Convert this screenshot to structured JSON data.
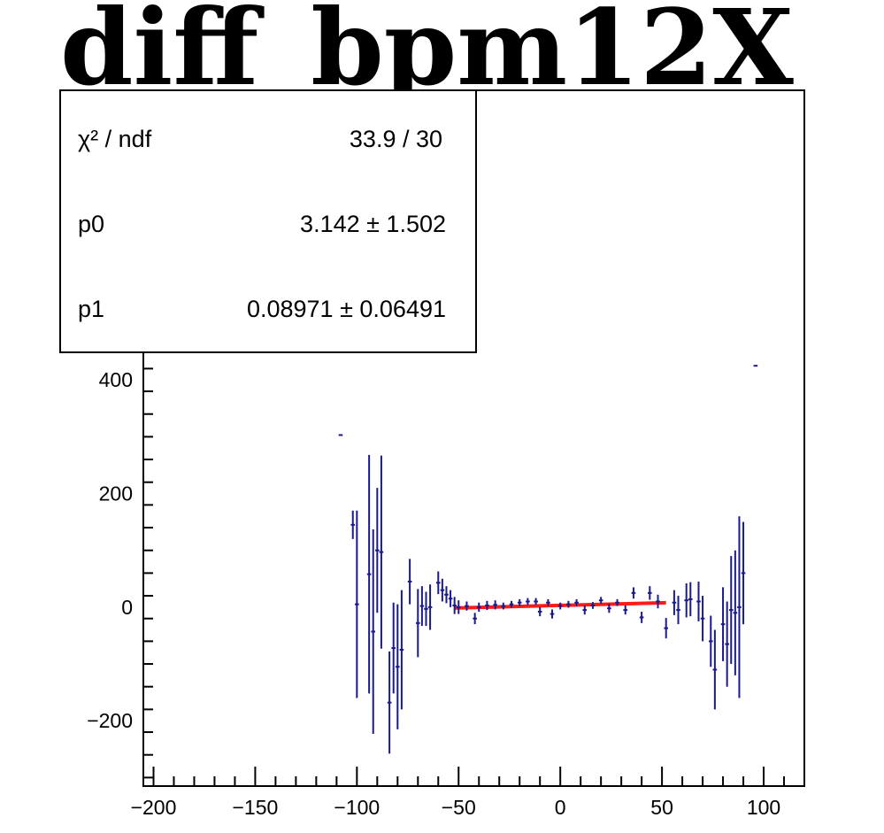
{
  "chart_data": {
    "type": "scatter",
    "title": "diff_bpm12X",
    "xlabel": "",
    "ylabel": "",
    "xlim": [
      -205,
      120
    ],
    "ylim": [
      -315,
      910
    ],
    "x_ticks": [
      {
        "value": -200,
        "label": "−200"
      },
      {
        "value": -150,
        "label": "−150"
      },
      {
        "value": -100,
        "label": "−100"
      },
      {
        "value": -50,
        "label": "−50"
      },
      {
        "value": 0,
        "label": "0"
      },
      {
        "value": 50,
        "label": "50"
      },
      {
        "value": 100,
        "label": "100"
      }
    ],
    "y_ticks": [
      {
        "value": -200,
        "label": "−200"
      },
      {
        "value": 0,
        "label": "0"
      },
      {
        "value": 200,
        "label": "200"
      },
      {
        "value": 400,
        "label": "400"
      }
    ],
    "grid": false,
    "marker_color": "#1a1a8c",
    "fit_color": "#ff1a1a",
    "series": [
      {
        "points": [
          {
            "x": -108,
            "y": 303,
            "ey": 0
          },
          {
            "x": -102,
            "y": 145,
            "ey": 25
          },
          {
            "x": -100,
            "y": 5,
            "ey": 165
          },
          {
            "x": -94,
            "y": 58,
            "ey": 210
          },
          {
            "x": -92,
            "y": -43,
            "ey": 180
          },
          {
            "x": -90,
            "y": 100,
            "ey": 110
          },
          {
            "x": -88,
            "y": 97,
            "ey": 170
          },
          {
            "x": -84,
            "y": -168,
            "ey": 90
          },
          {
            "x": -82,
            "y": -72,
            "ey": 80
          },
          {
            "x": -80,
            "y": -105,
            "ey": 110
          },
          {
            "x": -78,
            "y": -75,
            "ey": 105
          },
          {
            "x": -74,
            "y": 45,
            "ey": 40
          },
          {
            "x": -70,
            "y": -28,
            "ey": 60
          },
          {
            "x": -68,
            "y": 2,
            "ey": 35
          },
          {
            "x": -66,
            "y": -3,
            "ey": 30
          },
          {
            "x": -64,
            "y": 0,
            "ey": 40
          },
          {
            "x": -60,
            "y": 43,
            "ey": 20
          },
          {
            "x": -58,
            "y": 30,
            "ey": 20
          },
          {
            "x": -56,
            "y": 22,
            "ey": 15
          },
          {
            "x": -54,
            "y": 15,
            "ey": 15
          },
          {
            "x": -52,
            "y": 3,
            "ey": 15
          },
          {
            "x": -50,
            "y": 0,
            "ey": 12
          },
          {
            "x": -46,
            "y": 2,
            "ey": 8
          },
          {
            "x": -42,
            "y": -20,
            "ey": 10
          },
          {
            "x": -40,
            "y": 0,
            "ey": 8
          },
          {
            "x": -36,
            "y": 3,
            "ey": 8
          },
          {
            "x": -32,
            "y": 4,
            "ey": 8
          },
          {
            "x": -28,
            "y": 2,
            "ey": 6
          },
          {
            "x": -24,
            "y": 5,
            "ey": 6
          },
          {
            "x": -20,
            "y": 8,
            "ey": 6
          },
          {
            "x": -16,
            "y": 10,
            "ey": 6
          },
          {
            "x": -12,
            "y": 10,
            "ey": 6
          },
          {
            "x": -10,
            "y": -8,
            "ey": 8
          },
          {
            "x": -6,
            "y": 8,
            "ey": 6
          },
          {
            "x": -4,
            "y": -12,
            "ey": 8
          },
          {
            "x": 0,
            "y": 2,
            "ey": 6
          },
          {
            "x": 4,
            "y": 5,
            "ey": 6
          },
          {
            "x": 8,
            "y": 8,
            "ey": 6
          },
          {
            "x": 12,
            "y": -5,
            "ey": 8
          },
          {
            "x": 16,
            "y": 3,
            "ey": 6
          },
          {
            "x": 20,
            "y": 12,
            "ey": 6
          },
          {
            "x": 24,
            "y": -2,
            "ey": 8
          },
          {
            "x": 28,
            "y": 8,
            "ey": 6
          },
          {
            "x": 32,
            "y": -5,
            "ey": 8
          },
          {
            "x": 36,
            "y": 25,
            "ey": 10
          },
          {
            "x": 40,
            "y": -18,
            "ey": 10
          },
          {
            "x": 44,
            "y": 25,
            "ey": 12
          },
          {
            "x": 48,
            "y": 10,
            "ey": 12
          },
          {
            "x": 52,
            "y": -37,
            "ey": 18
          },
          {
            "x": 56,
            "y": 8,
            "ey": 22
          },
          {
            "x": 58,
            "y": -5,
            "ey": 25
          },
          {
            "x": 62,
            "y": 12,
            "ey": 30
          },
          {
            "x": 64,
            "y": 14,
            "ey": 30
          },
          {
            "x": 68,
            "y": 10,
            "ey": 35
          },
          {
            "x": 70,
            "y": -20,
            "ey": 40
          },
          {
            "x": 74,
            "y": -60,
            "ey": 45
          },
          {
            "x": 76,
            "y": -110,
            "ey": 70
          },
          {
            "x": 80,
            "y": -30,
            "ey": 65
          },
          {
            "x": 82,
            "y": -65,
            "ey": 75
          },
          {
            "x": 84,
            "y": -5,
            "ey": 95
          },
          {
            "x": 86,
            "y": -10,
            "ey": 110
          },
          {
            "x": 88,
            "y": 0,
            "ey": 160
          },
          {
            "x": 90,
            "y": 60,
            "ey": 90
          },
          {
            "x": 96,
            "y": 425,
            "ey": 0
          }
        ]
      }
    ],
    "fit": {
      "p0": 3.142,
      "p1": 0.08971,
      "x_range": [
        -52,
        52
      ]
    },
    "stats_box": {
      "rows": [
        {
          "label": "χ² / ndf",
          "value": "33.9 / 30"
        },
        {
          "label": "p0",
          "value": "3.142  ± 1.502"
        },
        {
          "label": "p1",
          "value": "0.08971 ± 0.06491"
        }
      ]
    }
  }
}
